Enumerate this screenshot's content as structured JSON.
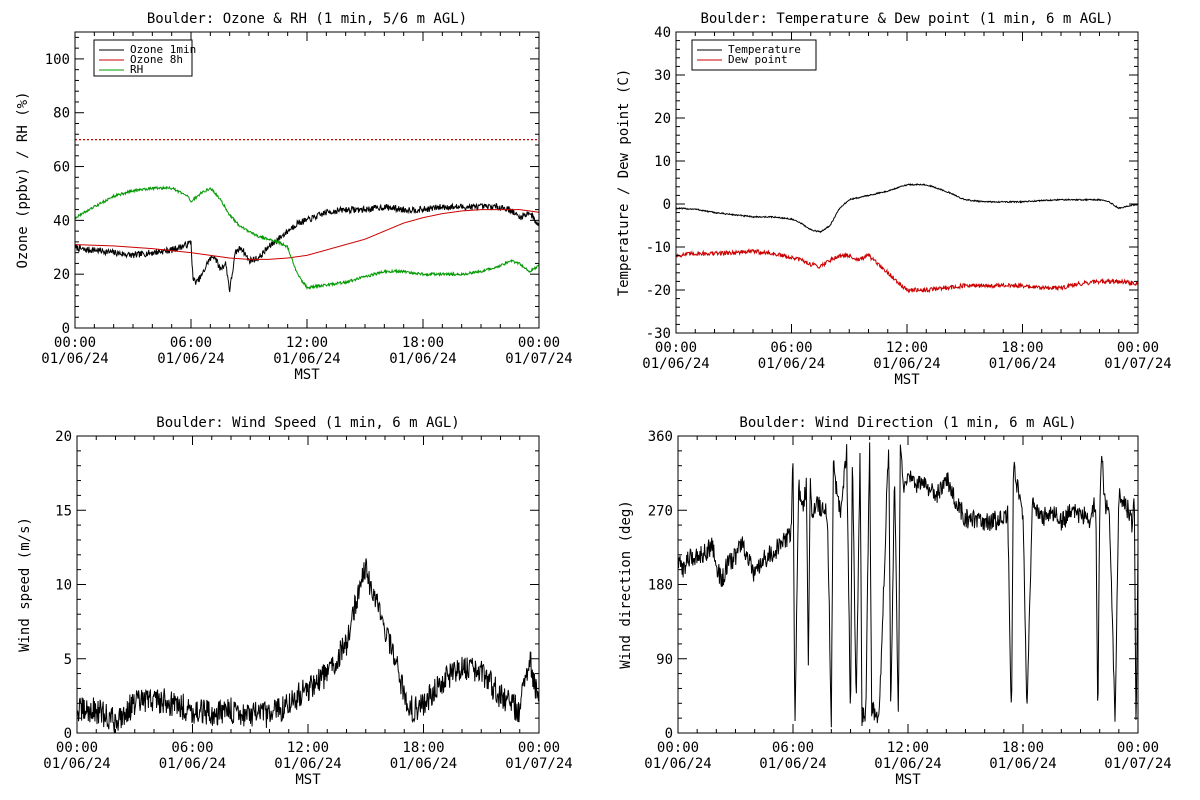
{
  "chart_data": [
    {
      "type": "line",
      "title": "Boulder: Ozone & RH (1 min, 5/6 m AGL)",
      "xlabel": "MST",
      "ylabel": "Ozone (ppbv) / RH (%)",
      "xlim": [
        0,
        24
      ],
      "ylim": [
        0,
        110
      ],
      "xticks": [
        0,
        6,
        12,
        18,
        24
      ],
      "xtick_time": [
        "00:00",
        "06:00",
        "12:00",
        "18:00",
        "00:00"
      ],
      "xtick_date": [
        "01/06/24",
        "01/06/24",
        "01/06/24",
        "01/06/24",
        "01/07/24"
      ],
      "yticks": [
        0,
        20,
        40,
        60,
        80,
        100
      ],
      "ytick_labels": [
        "0",
        "20",
        "40",
        "60",
        "80",
        "100"
      ],
      "legend_position": "top-left",
      "reference_line": {
        "y": 70,
        "color": "#cc0000",
        "style": "dotted"
      },
      "series": [
        {
          "name": "Ozone 1min",
          "color": "#000000",
          "noise": 1.2,
          "x": [
            0,
            0.5,
            1,
            2,
            3,
            4,
            5,
            5.8,
            6.0,
            6.1,
            6.3,
            6.6,
            6.9,
            7.2,
            7.5,
            7.8,
            8.0,
            8.3,
            8.6,
            9.0,
            9.5,
            10,
            10.5,
            11,
            11.5,
            12,
            13,
            14,
            15,
            16,
            17,
            18,
            19,
            20,
            21,
            22,
            22.5,
            23,
            23.5,
            24
          ],
          "y": [
            30,
            29,
            29,
            28,
            27,
            28,
            29,
            31,
            32,
            18,
            17,
            20,
            25,
            27,
            22,
            24,
            14,
            28,
            30,
            25,
            26,
            30,
            33,
            36,
            39,
            40,
            43,
            44,
            44,
            45,
            44,
            44,
            45,
            45,
            45,
            45,
            44,
            41,
            43,
            38
          ]
        },
        {
          "name": "Ozone 8h",
          "color": "#cc0000",
          "noise": 0,
          "x": [
            0,
            2,
            4,
            6,
            8,
            9,
            10,
            11,
            12,
            13,
            14,
            15,
            16,
            17,
            18,
            19,
            20,
            21,
            22,
            23,
            24
          ],
          "y": [
            31,
            30.5,
            29.5,
            28,
            26,
            25.5,
            25.5,
            26,
            27,
            29,
            31,
            33,
            36,
            39,
            41,
            42.5,
            43.5,
            44,
            44,
            44,
            43
          ]
        },
        {
          "name": "RH",
          "color": "#009900",
          "noise": 0.5,
          "x": [
            0,
            1,
            2,
            3,
            4,
            5,
            5.8,
            6.0,
            6.5,
            7,
            7.5,
            8,
            8.5,
            9,
            9.5,
            10,
            10.5,
            11,
            11.5,
            12,
            13,
            14,
            15,
            16,
            17,
            18,
            19,
            20,
            21,
            22,
            22.5,
            23,
            23.5,
            24
          ],
          "y": [
            41,
            45,
            49,
            51,
            52,
            52,
            49,
            47,
            50,
            52,
            48,
            42,
            38,
            36,
            34,
            33,
            32,
            30,
            20,
            15,
            16,
            17,
            19,
            21,
            21,
            20,
            20,
            20,
            21,
            23,
            25,
            24,
            21,
            23
          ]
        }
      ]
    },
    {
      "type": "line",
      "title": "Boulder: Temperature & Dew point (1 min, 6 m AGL)",
      "xlabel": "MST",
      "ylabel": "Temperature / Dew point (C)",
      "xlim": [
        0,
        24
      ],
      "ylim": [
        -30,
        40
      ],
      "xticks": [
        0,
        6,
        12,
        18,
        24
      ],
      "xtick_time": [
        "00:00",
        "06:00",
        "12:00",
        "18:00",
        "00:00"
      ],
      "xtick_date": [
        "01/06/24",
        "01/06/24",
        "01/06/24",
        "01/06/24",
        "01/07/24"
      ],
      "yticks": [
        -30,
        -20,
        -10,
        0,
        10,
        20,
        30,
        40
      ],
      "ytick_labels": [
        "-30",
        "-20",
        "-10",
        "0",
        "10",
        "20",
        "30",
        "40"
      ],
      "legend_position": "top-left",
      "series": [
        {
          "name": "Temperature",
          "color": "#000000",
          "noise": 0.15,
          "x": [
            0,
            1,
            2,
            3,
            4,
            5,
            6,
            6.5,
            7,
            7.5,
            8,
            8.5,
            9,
            10,
            11,
            12,
            13,
            14,
            15,
            16,
            17,
            18,
            19,
            20,
            21,
            22,
            22.5,
            23,
            23.5,
            24
          ],
          "y": [
            -1,
            -1.2,
            -2,
            -2.5,
            -3,
            -3,
            -3.5,
            -4.5,
            -6,
            -6.5,
            -5,
            -1,
            1,
            2,
            3,
            4.5,
            4.5,
            3,
            1,
            0.5,
            0.5,
            0.5,
            0.8,
            1,
            1,
            1,
            0.5,
            -1,
            -0.5,
            0
          ]
        },
        {
          "name": "Dew point",
          "color": "#cc0000",
          "noise": 0.5,
          "x": [
            0,
            1,
            2,
            3,
            4,
            5,
            6,
            6.5,
            7,
            7.5,
            8,
            8.5,
            9,
            9.5,
            10,
            10.5,
            11,
            11.5,
            12,
            13,
            14,
            15,
            16,
            17,
            18,
            19,
            20,
            21,
            22,
            23,
            24
          ],
          "y": [
            -12,
            -11.5,
            -11.5,
            -11.3,
            -11,
            -11.5,
            -12.5,
            -13,
            -14,
            -14.5,
            -13,
            -12,
            -12,
            -13,
            -12,
            -14,
            -16,
            -18,
            -20,
            -20,
            -19.5,
            -19,
            -19,
            -19,
            -19,
            -19.5,
            -19.5,
            -18.5,
            -18,
            -18,
            -18.5
          ]
        }
      ]
    },
    {
      "type": "line",
      "title": "Boulder: Wind Speed (1 min, 6 m AGL)",
      "xlabel": "MST",
      "ylabel": "Wind speed (m/s)",
      "xlim": [
        0,
        24
      ],
      "ylim": [
        0,
        20
      ],
      "xticks": [
        0,
        6,
        12,
        18,
        24
      ],
      "xtick_time": [
        "00:00",
        "06:00",
        "12:00",
        "18:00",
        "00:00"
      ],
      "xtick_date": [
        "01/06/24",
        "01/06/24",
        "01/06/24",
        "01/06/24",
        "01/07/24"
      ],
      "yticks": [
        0,
        5,
        10,
        15,
        20
      ],
      "ytick_labels": [
        "0",
        "5",
        "10",
        "15",
        "20"
      ],
      "series": [
        {
          "name": "",
          "color": "#000000",
          "noise": 0.9,
          "x": [
            0,
            1,
            2,
            3,
            4,
            5,
            6,
            7,
            8,
            9,
            10,
            11,
            12,
            13,
            14,
            14.5,
            15,
            15.5,
            16,
            16.5,
            17,
            17.5,
            18,
            19,
            20,
            21,
            22,
            23,
            23.5,
            24
          ],
          "y": [
            1.5,
            1.5,
            0.8,
            2,
            2.3,
            2,
            1.5,
            1.3,
            1.5,
            1.2,
            1.2,
            2,
            3,
            4,
            6,
            9,
            11,
            9,
            7,
            5,
            2.5,
            1.5,
            2,
            3.5,
            4.5,
            4,
            2.5,
            1.5,
            5,
            2
          ]
        }
      ]
    },
    {
      "type": "line",
      "title": "Boulder: Wind Direction (1 min, 6 m AGL)",
      "xlabel": "MST",
      "ylabel": "Wind direction (deg)",
      "xlim": [
        0,
        24
      ],
      "ylim": [
        0,
        360
      ],
      "xticks": [
        0,
        6,
        12,
        18,
        24
      ],
      "xtick_time": [
        "00:00",
        "06:00",
        "12:00",
        "18:00",
        "00:00"
      ],
      "xtick_date": [
        "01/06/24",
        "01/06/24",
        "01/06/24",
        "01/06/24",
        "01/07/24"
      ],
      "yticks": [
        0,
        90,
        180,
        270,
        360
      ],
      "ytick_labels": [
        "0",
        "90",
        "180",
        "270",
        "360"
      ],
      "series": [
        {
          "name": "",
          "color": "#000000",
          "noise": 12,
          "x": [
            0,
            0.3,
            0.5,
            1,
            1.5,
            1.8,
            1.9,
            2.0,
            2.3,
            2.5,
            3,
            3.3,
            3.5,
            4,
            4.5,
            5,
            5.5,
            5.9,
            6.0,
            6.1,
            6.3,
            6.5,
            6.7,
            6.8,
            6.9,
            7,
            7.3,
            7.5,
            7.8,
            8.0,
            8.1,
            8.2,
            8.5,
            8.8,
            9.0,
            9.1,
            9.3,
            9.5,
            9.6,
            9.8,
            10.0,
            10.1,
            10.5,
            11.0,
            11.1,
            11.3,
            11.5,
            11.6,
            11.8,
            12,
            12.5,
            13,
            13.5,
            14,
            14.5,
            15,
            16,
            17,
            17.2,
            17.4,
            17.5,
            17.7,
            17.9,
            18,
            18.2,
            18.5,
            19,
            19.5,
            20,
            20.5,
            21,
            21.5,
            21.8,
            21.9,
            22.0,
            22.1,
            22.3,
            22.5,
            22.8,
            23,
            23.5,
            23.7,
            23.8,
            23.9,
            24
          ],
          "y": [
            205,
            200,
            210,
            215,
            220,
            230,
            215,
            200,
            185,
            200,
            215,
            230,
            220,
            190,
            210,
            220,
            230,
            245,
            330,
            10,
            300,
            270,
            300,
            80,
            320,
            260,
            280,
            270,
            265,
            10,
            330,
            300,
            270,
            340,
            20,
            340,
            30,
            340,
            20,
            20,
            360,
            30,
            20,
            360,
            20,
            320,
            10,
            350,
            290,
            310,
            300,
            300,
            290,
            310,
            280,
            260,
            255,
            260,
            270,
            10,
            330,
            300,
            270,
            270,
            20,
            280,
            260,
            270,
            255,
            270,
            265,
            260,
            280,
            10,
            260,
            340,
            270,
            280,
            10,
            290,
            270,
            250,
            300,
            5,
            220
          ]
        }
      ]
    }
  ]
}
